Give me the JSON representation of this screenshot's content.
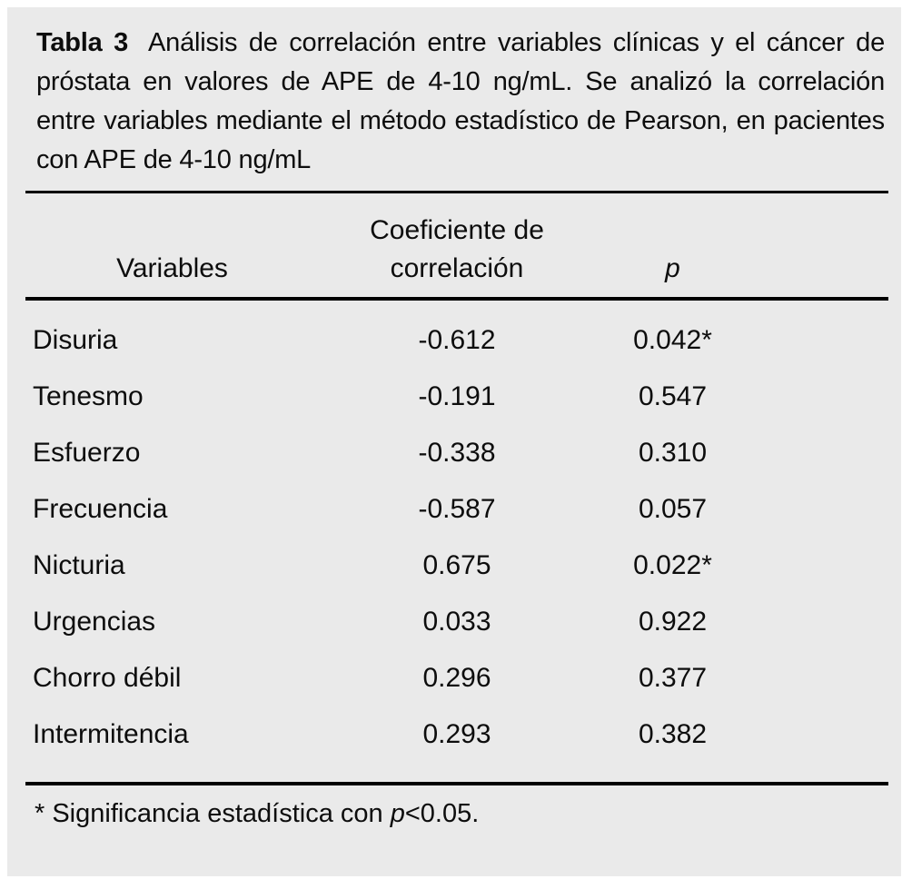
{
  "caption": {
    "label": "Tabla 3",
    "text": "Análisis de correlación entre variables clínicas y el cáncer de próstata en valores de APE de 4-10 ng/mL. Se analizó la correlación entre variables mediante el método estadístico de Pearson, en pacientes con APE de 4-10 ng/mL"
  },
  "header": {
    "variables": "Variables",
    "coefficient_line1": "Coeficiente de",
    "coefficient_line2": "correlación",
    "p": "p"
  },
  "rows": [
    {
      "variable": "Disuria",
      "coefficient": "-0.612",
      "p": "0.042*"
    },
    {
      "variable": "Tenesmo",
      "coefficient": "-0.191",
      "p": "0.547"
    },
    {
      "variable": "Esfuerzo",
      "coefficient": "-0.338",
      "p": "0.310"
    },
    {
      "variable": "Frecuencia",
      "coefficient": "-0.587",
      "p": "0.057"
    },
    {
      "variable": "Nicturia",
      "coefficient": "0.675",
      "p": "0.022*"
    },
    {
      "variable": "Urgencias",
      "coefficient": "0.033",
      "p": "0.922"
    },
    {
      "variable": "Chorro débil",
      "coefficient": "0.296",
      "p": "0.377"
    },
    {
      "variable": "Intermitencia",
      "coefficient": "0.293",
      "p": "0.382"
    }
  ],
  "footnote": {
    "prefix": "* Significancia estadística con ",
    "p_symbol": "p",
    "suffix": "<0.05."
  },
  "colors": {
    "panel_background": "#eaeaea",
    "text": "#0d0d0d",
    "rule": "#000000"
  },
  "chart_data": {
    "type": "table",
    "title": "Tabla 3. Análisis de correlación entre variables clínicas y el cáncer de próstata en valores de APE de 4-10 ng/mL (método estadístico de Pearson, pacientes con APE de 4-10 ng/mL)",
    "columns": [
      "Variables",
      "Coeficiente de correlación",
      "p"
    ],
    "rows": [
      [
        "Disuria",
        -0.612,
        "0.042*"
      ],
      [
        "Tenesmo",
        -0.191,
        "0.547"
      ],
      [
        "Esfuerzo",
        -0.338,
        "0.310"
      ],
      [
        "Frecuencia",
        -0.587,
        "0.057"
      ],
      [
        "Nicturia",
        0.675,
        "0.022*"
      ],
      [
        "Urgencias",
        0.033,
        "0.922"
      ],
      [
        "Chorro débil",
        0.296,
        "0.377"
      ],
      [
        "Intermitencia",
        0.293,
        "0.382"
      ]
    ],
    "footnote": "* Significancia estadística con p<0.05."
  }
}
